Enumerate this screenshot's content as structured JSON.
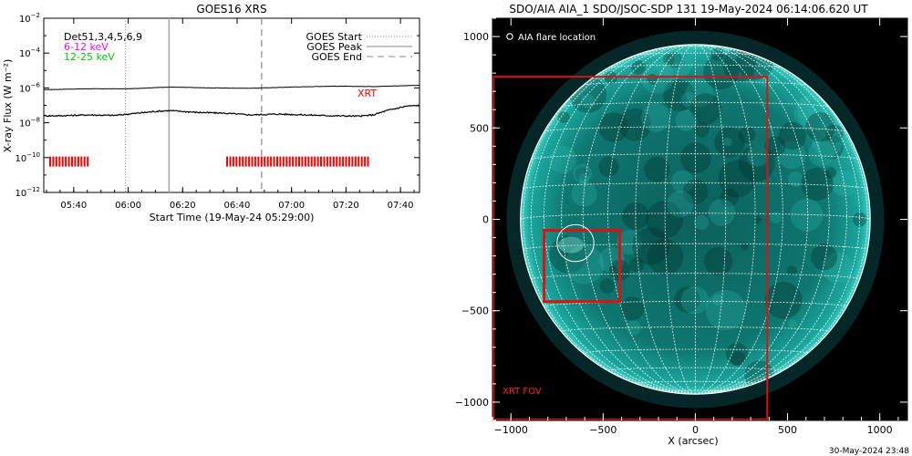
{
  "chart_data": [
    {
      "type": "line",
      "title": "GOES16 XRS",
      "xlabel": "Start Time (19-May-24 05:29:00)",
      "ylabel": "X-ray Flux (W m⁻²)",
      "y_scale": "log",
      "ylim_exp": [
        -12,
        -2
      ],
      "y_tick_exps": [
        -12,
        -10,
        -8,
        -6,
        -4,
        -2
      ],
      "xlim": [
        "05:29",
        "07:47"
      ],
      "x_ticks": [
        "05:40",
        "06:00",
        "06:20",
        "06:40",
        "07:00",
        "07:20",
        "07:40"
      ],
      "legend_left": [
        {
          "label": "Det51,3,4,5,6,9",
          "color": "#000000"
        },
        {
          "label": "6-12 keV",
          "color": "#ff00ff"
        },
        {
          "label": "12-25 keV",
          "color": "#00cc00"
        }
      ],
      "legend_right": [
        {
          "label": "GOES Start",
          "style": "dotted"
        },
        {
          "label": "GOES Peak",
          "style": "solid"
        },
        {
          "label": "GOES End",
          "style": "dashed"
        }
      ],
      "markers": {
        "start": "05:59",
        "peak": "06:15",
        "end": "06:49"
      },
      "series": [
        {
          "name": "long",
          "color": "#000000",
          "x": [
            "05:29",
            "05:45",
            "06:00",
            "06:15",
            "06:30",
            "06:45",
            "07:00",
            "07:15",
            "07:30",
            "07:47"
          ],
          "y_exp": [
            -6.1,
            -6.05,
            -6.05,
            -5.95,
            -6.0,
            -6.02,
            -5.95,
            -5.9,
            -5.92,
            -5.85
          ]
        },
        {
          "name": "short",
          "color": "#000000",
          "x": [
            "05:29",
            "05:35",
            "05:45",
            "05:55",
            "06:00",
            "06:10",
            "06:15",
            "06:25",
            "06:35",
            "06:45",
            "06:55",
            "07:05",
            "07:15",
            "07:25",
            "07:30",
            "07:35",
            "07:42",
            "07:47"
          ],
          "y_exp": [
            -7.6,
            -7.6,
            -7.55,
            -7.58,
            -7.5,
            -7.35,
            -7.3,
            -7.4,
            -7.45,
            -7.55,
            -7.5,
            -7.55,
            -7.6,
            -7.62,
            -7.55,
            -7.3,
            -7.05,
            -7.0
          ]
        }
      ],
      "xrt": {
        "label": "XRT",
        "level_exp": -10.2,
        "color": "#ff0000",
        "intervals": [
          [
            "05:31",
            "05:45"
          ],
          [
            "06:36",
            "07:28"
          ]
        ]
      }
    },
    {
      "type": "image",
      "title": "SDO/AIA AIA_1 SDO/JSOC-SDP 131 19-May-2024 06:14:06.620 UT",
      "xlabel": "X (arcsec)",
      "xlim": [
        -1100,
        1150
      ],
      "ylim": [
        -1100,
        1100
      ],
      "x_ticks": [
        -1000,
        -500,
        0,
        500,
        1000
      ],
      "y_ticks": [
        -1000,
        -500,
        0,
        500,
        1000
      ],
      "solar_radius_arcsec": 948,
      "grid_spacing_deg": 10,
      "legend": "AIA flare location",
      "flare_location": [
        -650,
        -130
      ],
      "xrt_fov": {
        "label": "XRT FOV",
        "x": [
          -1100,
          390
        ],
        "y": [
          -1100,
          780
        ]
      },
      "xrt_small_box": {
        "x": [
          -820,
          -410
        ],
        "y": [
          -450,
          -60
        ]
      },
      "timestamp": "30-May-2024 23:48"
    }
  ],
  "colors": {
    "axis": "#000000",
    "xrt": "#ff0000",
    "sun_disk": "#0a8f86",
    "sun_dark": "#032e30"
  }
}
